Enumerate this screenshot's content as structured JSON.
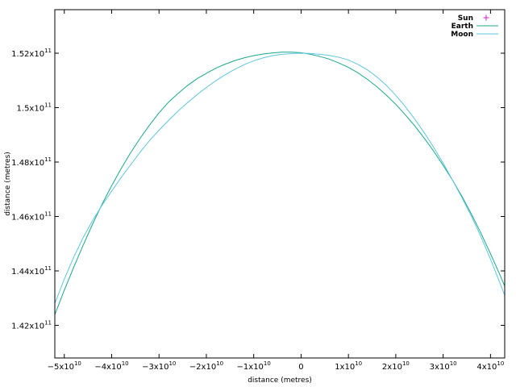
{
  "chart_data": {
    "type": "line",
    "xlabel": "distance (metres)",
    "ylabel": "distance (metres)",
    "xlim": [
      -52000000000,
      43000000000
    ],
    "ylim": [
      140800000000,
      153600000000
    ],
    "grid": false,
    "legend_position": "top-right",
    "x_ticks": [
      {
        "value": -50000000000,
        "mant": "−5x10",
        "exp": "10"
      },
      {
        "value": -40000000000,
        "mant": "−4x10",
        "exp": "10"
      },
      {
        "value": -30000000000,
        "mant": "−3x10",
        "exp": "10"
      },
      {
        "value": -20000000000,
        "mant": "−2x10",
        "exp": "10"
      },
      {
        "value": -10000000000,
        "mant": "−1x10",
        "exp": "10"
      },
      {
        "value": 0,
        "mant": "0",
        "exp": ""
      },
      {
        "value": 10000000000,
        "mant": "1x10",
        "exp": "10"
      },
      {
        "value": 20000000000,
        "mant": "2x10",
        "exp": "10"
      },
      {
        "value": 30000000000,
        "mant": "3x10",
        "exp": "10"
      },
      {
        "value": 40000000000,
        "mant": "4x10",
        "exp": "10"
      }
    ],
    "y_ticks": [
      {
        "value": 142000000000,
        "mant": "1.42x10",
        "exp": "11"
      },
      {
        "value": 144000000000,
        "mant": "1.44x10",
        "exp": "11"
      },
      {
        "value": 146000000000,
        "mant": "1.46x10",
        "exp": "11"
      },
      {
        "value": 148000000000,
        "mant": "1.48x10",
        "exp": "11"
      },
      {
        "value": 150000000000,
        "mant": "1.5x10",
        "exp": "11"
      },
      {
        "value": 152000000000,
        "mant": "1.52x10",
        "exp": "11"
      }
    ],
    "series": [
      {
        "name": "Sun",
        "marker": "+",
        "color": "#cc44cc",
        "x": [],
        "y": []
      },
      {
        "name": "Earth",
        "color": "#1aa88a",
        "x": [
          -53000000000,
          -52000000000,
          -50000000000,
          -48000000000,
          -46000000000,
          -44000000000,
          -42000000000,
          -40000000000,
          -38000000000,
          -36000000000,
          -34000000000,
          -32000000000,
          -30000000000,
          -28000000000,
          -26000000000,
          -24000000000,
          -22000000000,
          -20000000000,
          -18000000000,
          -16000000000,
          -14000000000,
          -12000000000,
          -10000000000,
          -8000000000,
          -6000000000,
          -4000000000,
          -2000000000,
          0,
          2000000000,
          4000000000,
          6000000000,
          8000000000,
          10000000000,
          12000000000,
          14000000000,
          16000000000,
          18000000000,
          20000000000,
          22000000000,
          24000000000,
          26000000000,
          28000000000,
          30000000000,
          32000000000,
          34000000000,
          36000000000,
          38000000000,
          40000000000,
          42000000000,
          43000000000
        ],
        "y": [
          141700000000,
          142390000000,
          143290000000,
          144140000000,
          144950000000,
          145730000000,
          146460000000,
          147130000000,
          147760000000,
          148340000000,
          148870000000,
          149360000000,
          149810000000,
          150200000000,
          150520000000,
          150810000000,
          151060000000,
          151260000000,
          151450000000,
          151600000000,
          151730000000,
          151830000000,
          151910000000,
          151970000000,
          152010000000,
          152040000000,
          152040000000,
          152020000000,
          151960000000,
          151880000000,
          151780000000,
          151640000000,
          151480000000,
          151280000000,
          151040000000,
          150770000000,
          150460000000,
          150120000000,
          149740000000,
          149330000000,
          148880000000,
          148400000000,
          147880000000,
          147330000000,
          146730000000,
          146080000000,
          145380000000,
          144630000000,
          143850000000,
          143440000000
        ]
      },
      {
        "name": "Moon",
        "color": "#5fc4e0",
        "x": [
          -53000000000,
          -52000000000,
          -50000000000,
          -48000000000,
          -46000000000,
          -44000000000,
          -42000000000,
          -40000000000,
          -38000000000,
          -36000000000,
          -34000000000,
          -32000000000,
          -30000000000,
          -28000000000,
          -26000000000,
          -24000000000,
          -22000000000,
          -20000000000,
          -18000000000,
          -16000000000,
          -14000000000,
          -12000000000,
          -10000000000,
          -8000000000,
          -6000000000,
          -4000000000,
          -2000000000,
          0,
          2000000000,
          4000000000,
          6000000000,
          8000000000,
          10000000000,
          12000000000,
          14000000000,
          16000000000,
          18000000000,
          20000000000,
          22000000000,
          24000000000,
          26000000000,
          28000000000,
          30000000000,
          32000000000,
          34000000000,
          36000000000,
          38000000000,
          40000000000,
          42000000000,
          43000000000
        ],
        "y": [
          142100000000,
          142800000000,
          143700000000,
          144510000000,
          145230000000,
          145860000000,
          146420000000,
          146930000000,
          147430000000,
          147900000000,
          148360000000,
          148790000000,
          149170000000,
          149530000000,
          149870000000,
          150180000000,
          150470000000,
          150740000000,
          150990000000,
          151210000000,
          151410000000,
          151580000000,
          151720000000,
          151830000000,
          151910000000,
          151960000000,
          151990000000,
          152000000000,
          151990000000,
          151960000000,
          151920000000,
          151850000000,
          151750000000,
          151590000000,
          151390000000,
          151130000000,
          150820000000,
          150450000000,
          150040000000,
          149580000000,
          149080000000,
          148540000000,
          147960000000,
          147330000000,
          146680000000,
          146000000000,
          145250000000,
          144430000000,
          143550000000,
          143100000000
        ]
      }
    ]
  }
}
